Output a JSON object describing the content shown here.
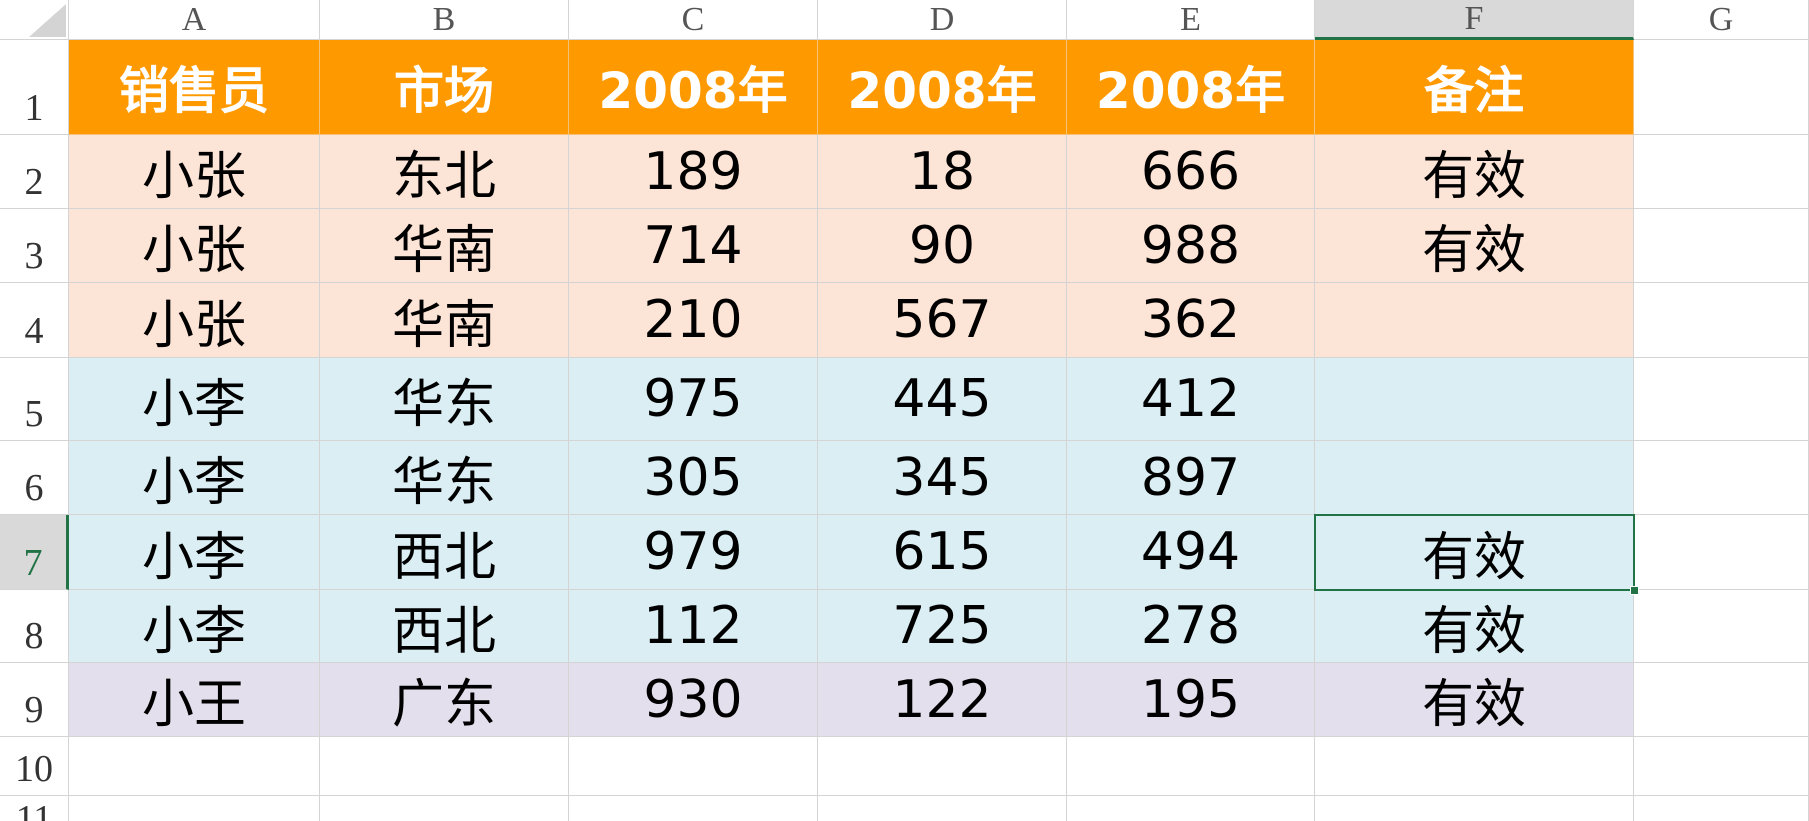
{
  "columns": [
    "A",
    "B",
    "C",
    "D",
    "E",
    "F",
    "G"
  ],
  "row_numbers": [
    1,
    2,
    3,
    4,
    5,
    6,
    7,
    8,
    9,
    10,
    11
  ],
  "table": {
    "header": [
      "销售员",
      "市场",
      "2008年",
      "2008年",
      "2008年",
      "备注"
    ],
    "rows": [
      [
        "小张",
        "东北",
        189,
        18,
        666,
        "有效"
      ],
      [
        "小张",
        "华南",
        714,
        90,
        988,
        "有效"
      ],
      [
        "小张",
        "华南",
        210,
        567,
        362,
        null
      ],
      [
        "小李",
        "华东",
        975,
        445,
        412,
        null
      ],
      [
        "小李",
        "华东",
        305,
        345,
        897,
        null
      ],
      [
        "小李",
        "西北",
        979,
        615,
        494,
        "有效"
      ],
      [
        "小李",
        "西北",
        112,
        725,
        278,
        "有效"
      ],
      [
        "小王",
        "广东",
        930,
        122,
        195,
        "有效"
      ]
    ]
  }
}
